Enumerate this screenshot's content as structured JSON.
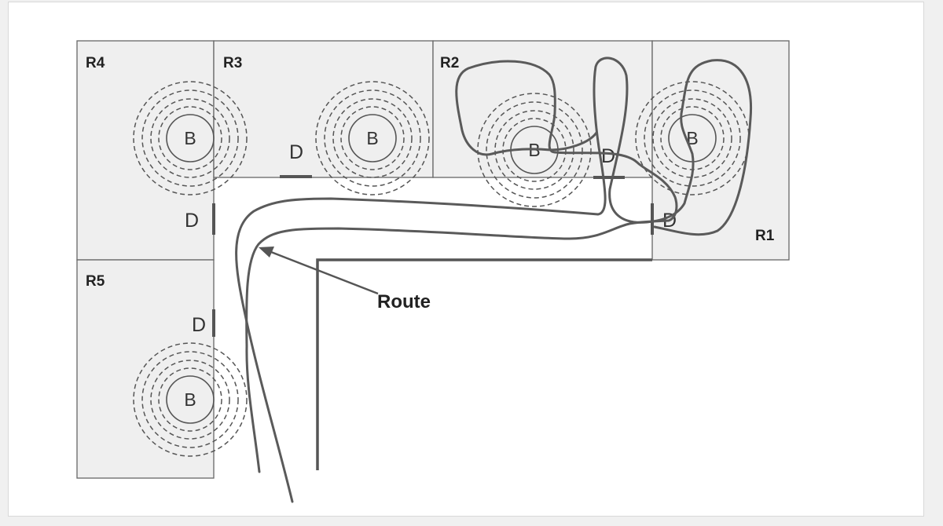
{
  "rooms": [
    {
      "id": "r4",
      "label": "R4"
    },
    {
      "id": "r3",
      "label": "R3"
    },
    {
      "id": "r2",
      "label": "R2"
    },
    {
      "id": "r1",
      "label": "R1"
    },
    {
      "id": "r5",
      "label": "R5"
    }
  ],
  "beacon_letter": "B",
  "door_letter": "D",
  "route_label": "Route",
  "colors": {
    "room_fill": "#efefef",
    "line": "#555555"
  }
}
